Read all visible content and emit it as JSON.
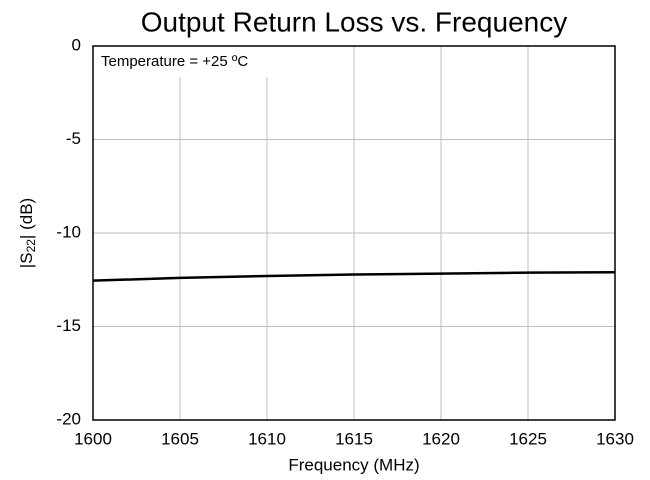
{
  "chart_data": {
    "type": "line",
    "title": "Output Return Loss vs. Frequency",
    "xlabel": "Frequency (MHz)",
    "ylabel": {
      "prefix": "|S",
      "sub": "22",
      "suffix": "| (dB)"
    },
    "annotation": "Temperature = +25 ºC",
    "x": [
      1600,
      1605,
      1610,
      1615,
      1620,
      1625,
      1630
    ],
    "series": [
      {
        "color": "#000000",
        "values": [
          -12.55,
          -12.4,
          -12.3,
          -12.22,
          -12.17,
          -12.12,
          -12.1
        ]
      }
    ],
    "xlim": [
      1600,
      1630
    ],
    "xticks": [
      1600,
      1605,
      1610,
      1615,
      1620,
      1625,
      1630
    ],
    "ylim": [
      -20,
      0
    ],
    "yticks": [
      -20,
      -15,
      -10,
      -5,
      0
    ],
    "grid": true
  }
}
